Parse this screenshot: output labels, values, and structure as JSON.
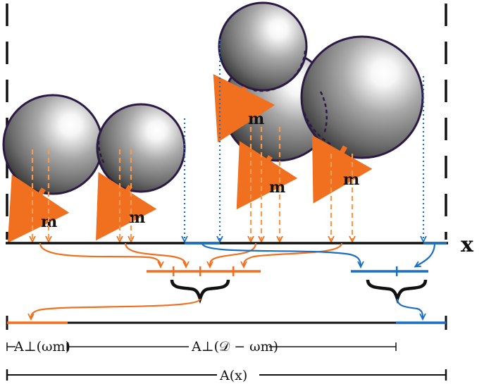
{
  "diagram": {
    "axis_label": "x",
    "force_label": "m",
    "interval_labels": {
      "orange_segment": "A⊥(ωm)",
      "middle_segment": "A⊥(𝒟 − ωm)",
      "total": "A(x)"
    },
    "operators": {
      "plus": "+"
    },
    "colors": {
      "orange": "#f07020",
      "orange_light": "#f59a50",
      "blue": "#1a6fc4",
      "sphere_outline": "#2a1a44",
      "black": "#111111"
    }
  }
}
